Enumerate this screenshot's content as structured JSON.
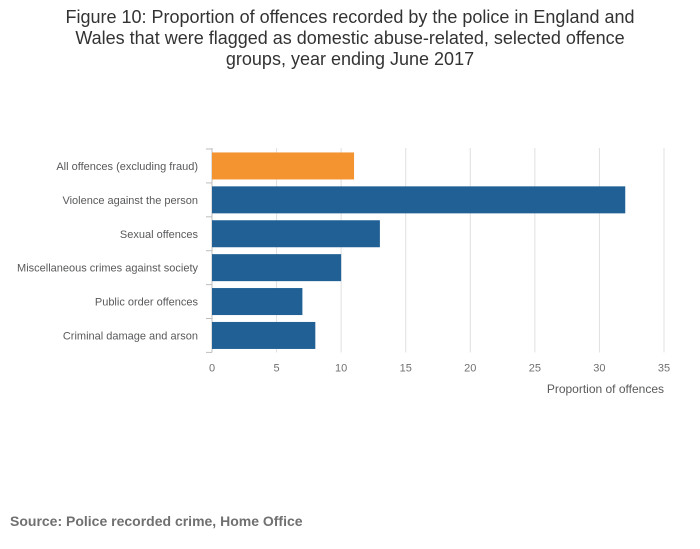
{
  "chart_data": {
    "type": "bar",
    "orientation": "horizontal",
    "title_lines": [
      "Figure 10: Proportion of offences recorded by the police in England and",
      "Wales that were flagged as domestic abuse-related, selected offence",
      "groups, year ending June 2017"
    ],
    "categories": [
      "All offences (excluding fraud)",
      "Violence against the person",
      "Sexual offences",
      "Miscellaneous crimes against society",
      "Public order offences",
      "Criminal damage and arson"
    ],
    "values": [
      11,
      32,
      13,
      10,
      7,
      8
    ],
    "highlight_index": 0,
    "xlabel": "Proportion of offences",
    "ylabel": "",
    "xlim": [
      0,
      35
    ],
    "xticks": [
      0,
      5,
      10,
      15,
      20,
      25,
      30,
      35
    ],
    "grid": true,
    "legend": "none",
    "colors": {
      "highlight": "#f39431",
      "default": "#206095",
      "grid": "#e0e0e0",
      "axis": "#bdbdbd"
    }
  },
  "source": "Source: Police recorded crime, Home Office"
}
